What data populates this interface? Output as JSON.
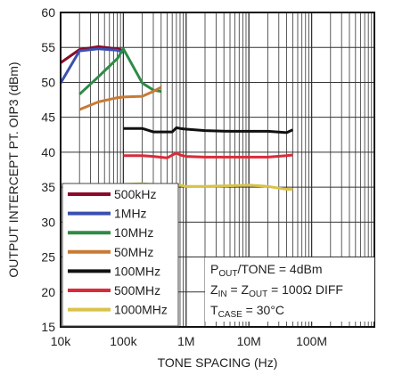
{
  "chart_data": {
    "type": "line",
    "x_scale": "log",
    "xlim": [
      10000,
      1000000000
    ],
    "ylim": [
      15,
      60
    ],
    "xlabel": "TONE SPACING (Hz)",
    "ylabel": "OUTPUT INTERCEPT PT. OIP3 (dBm)",
    "x_tick_labels": [
      "10k",
      "100k",
      "1M",
      "10M",
      "100M"
    ],
    "x_tick_values": [
      10000,
      100000,
      1000000,
      10000000,
      100000000
    ],
    "y_tick_values": [
      15,
      20,
      25,
      30,
      35,
      40,
      45,
      50,
      55,
      60
    ],
    "grid": true,
    "legend_position": "bottom-left",
    "series": [
      {
        "name": "500kHz",
        "color": "#8b0a2a",
        "x": [
          10000,
          20000,
          40000,
          80000,
          100000
        ],
        "y": [
          52.8,
          54.7,
          55.1,
          54.8,
          54.6
        ]
      },
      {
        "name": "1MHz",
        "color": "#3a4fb0",
        "x": [
          10000,
          20000,
          40000,
          80000,
          100000
        ],
        "y": [
          49.9,
          54.5,
          54.8,
          54.6,
          54.3
        ]
      },
      {
        "name": "10MHz",
        "color": "#2e8b47",
        "x": [
          20000,
          40000,
          80000,
          100000,
          200000,
          300000,
          400000
        ],
        "y": [
          48.3,
          50.8,
          53.4,
          54.8,
          49.9,
          48.9,
          48.7
        ]
      },
      {
        "name": "50MHz",
        "color": "#c87a35",
        "x": [
          20000,
          40000,
          80000,
          100000,
          200000,
          300000,
          400000
        ],
        "y": [
          46.1,
          47.2,
          47.8,
          47.9,
          48.0,
          48.7,
          49.3
        ]
      },
      {
        "name": "100MHz",
        "color": "#111111",
        "x": [
          100000,
          200000,
          300000,
          500000,
          600000,
          700000,
          800000,
          1000000,
          2000000,
          5000000,
          10000000,
          20000000,
          40000000,
          50000000
        ],
        "y": [
          43.4,
          43.4,
          42.9,
          42.9,
          42.9,
          43.5,
          43.4,
          43.3,
          43.1,
          43.0,
          43.0,
          43.0,
          42.8,
          43.2
        ]
      },
      {
        "name": "500MHz",
        "color": "#d92b3a",
        "x": [
          100000,
          200000,
          300000,
          500000,
          700000,
          800000,
          1000000,
          2000000,
          5000000,
          10000000,
          20000000,
          40000000,
          50000000
        ],
        "y": [
          39.5,
          39.5,
          39.4,
          39.2,
          39.9,
          39.6,
          39.4,
          39.3,
          39.3,
          39.3,
          39.3,
          39.5,
          39.6
        ]
      },
      {
        "name": "1000MHz",
        "color": "#d8c24a",
        "x": [
          100000,
          200000,
          300000,
          500000,
          700000,
          1000000,
          2000000,
          5000000,
          10000000,
          20000000,
          40000000,
          50000000
        ],
        "y": [
          35.4,
          35.5,
          35.4,
          35.3,
          35.4,
          35.1,
          35.1,
          35.2,
          35.3,
          35.1,
          34.7,
          34.7
        ]
      }
    ]
  },
  "annotations": {
    "pout_main": "P",
    "pout_sub": "OUT",
    "pout_rest": "/TONE = 4dBm",
    "zin_main": "Z",
    "zin_sub": "IN",
    "zin_mid": " = Z",
    "zout_sub": "OUT",
    "zin_rest": " = 100Ω DIFF",
    "tcase_main": "T",
    "tcase_sub": "CASE",
    "tcase_rest": " = 30°C"
  }
}
